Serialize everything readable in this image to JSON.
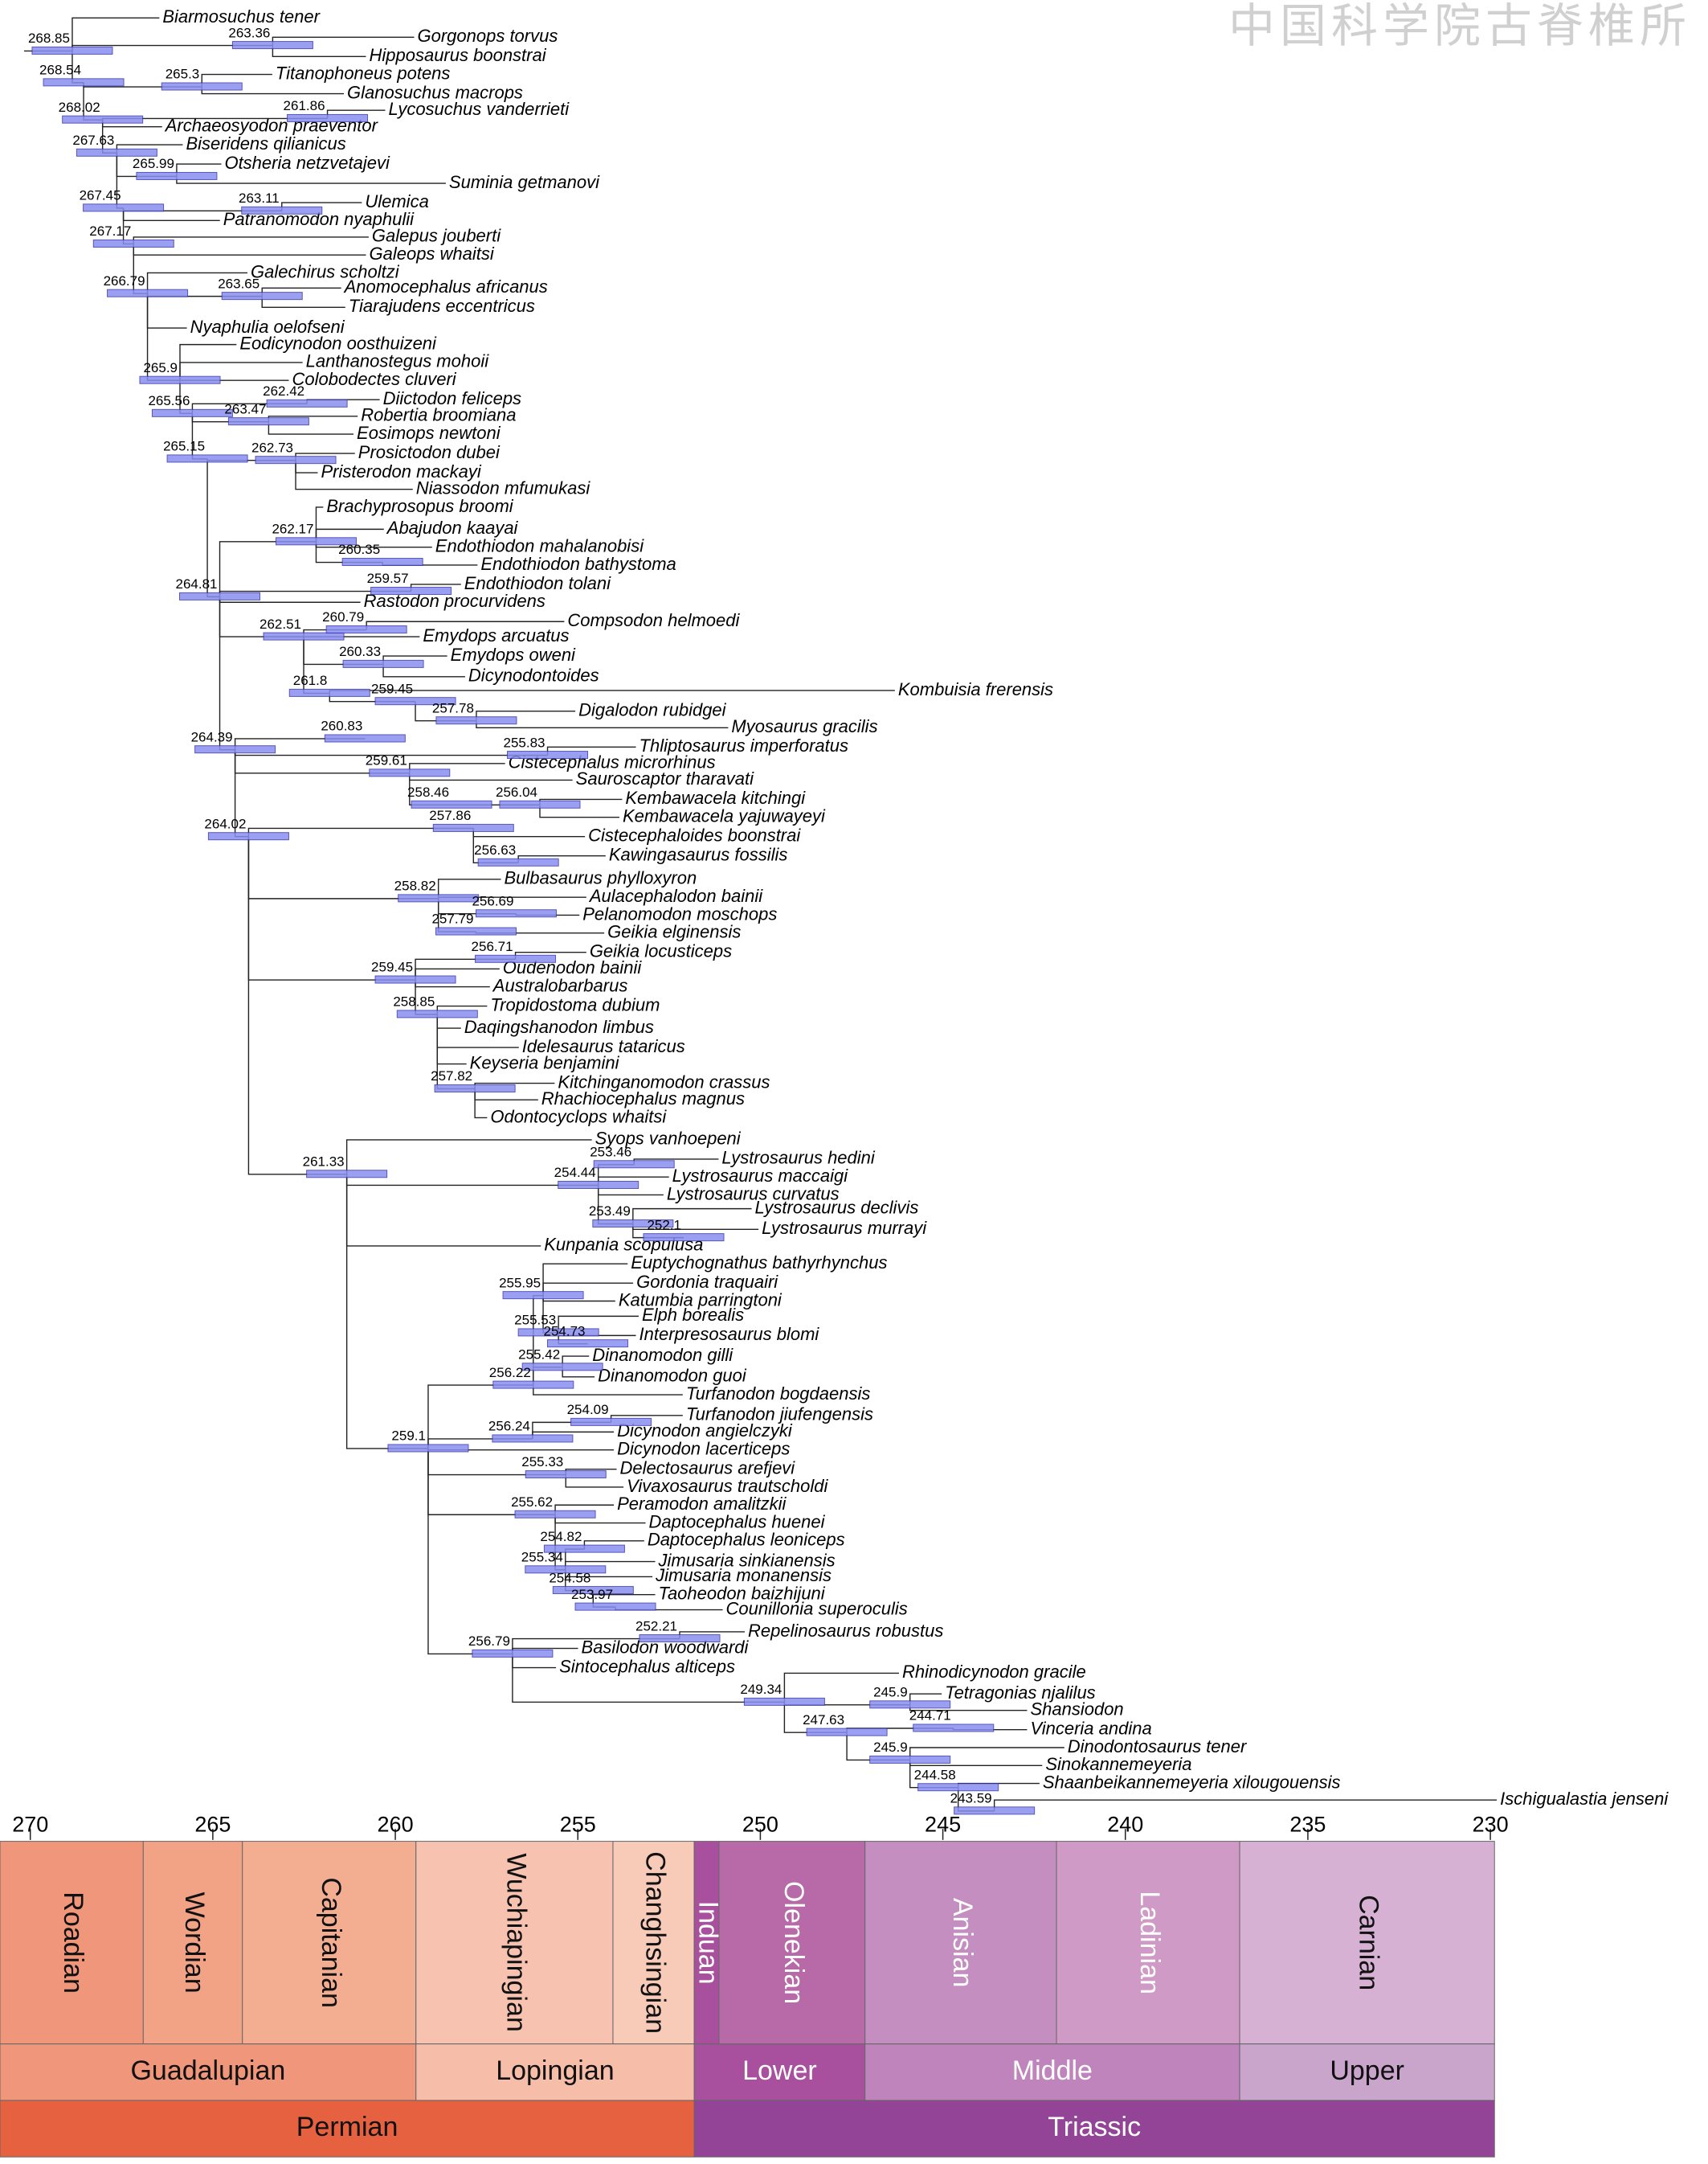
{
  "watermark": "中国科学院古脊椎所",
  "taxa": [
    "Biarmosuchus tener",
    "Gorgonops torvus",
    "Hipposaurus boonstrai",
    "Titanophoneus potens",
    "Glanosuchus macrops",
    "Lycosuchus vanderrieti",
    "Archaeosyodon praeventor",
    "Biseridens qilianicus",
    "Otsheria netzvetajevi",
    "Suminia getmanovi",
    "Ulemica",
    "Patranomodon nyaphulii",
    "Galepus jouberti",
    "Galeops whaitsi",
    "Galechirus scholtzi",
    "Anomocephalus africanus",
    "Tiarajudens eccentricus",
    "Nyaphulia oelofseni",
    "Eodicynodon oosthuizeni",
    "Lanthanostegus mohoii",
    "Colobodectes cluveri",
    "Diictodon feliceps",
    "Robertia broomiana",
    "Eosimops newtoni",
    "Prosictodon dubei",
    "Pristerodon mackayi",
    "Niassodon mfumukasi",
    "Brachyprosopus broomi",
    "Abajudon kaayai",
    "Endothiodon mahalanobisi",
    "Endothiodon bathystoma",
    "Endothiodon tolani",
    "Rastodon procurvidens",
    "Compsodon helmoedi",
    "Emydops arcuatus",
    "Emydops oweni",
    "Dicynodontoides",
    "Kombuisia frerensis",
    "Digalodon rubidgei",
    "Myosaurus gracilis",
    "Thliptosaurus imperforatus",
    "Cistecephalus microrhinus",
    "Sauroscaptor tharavati",
    "Kembawacela kitchingi",
    "Kembawacela yajuwayeyi",
    "Cistecephaloides boonstrai",
    "Kawingasaurus fossilis",
    "Bulbasaurus phylloxyron",
    "Aulacephalodon bainii",
    "Pelanomodon moschops",
    "Geikia elginensis",
    "Geikia locusticeps",
    "Oudenodon bainii",
    "Australobarbarus",
    "Tropidostoma dubium",
    "Daqingshanodon limbus",
    "Idelesaurus tataricus",
    "Keyseria benjamini",
    "Kitchinganomodon crassus",
    "Rhachiocephalus magnus",
    "Odontocyclops whaitsi",
    "Syops vanhoepeni",
    "Lystrosaurus hedini",
    "Lystrosaurus maccaigi",
    "Lystrosaurus curvatus",
    "Lystrosaurus declivis",
    "Lystrosaurus murrayi",
    "Kunpania scopulusa",
    "Euptychognathus bathyrhynchus",
    "Gordonia traquairi",
    "Katumbia parringtoni",
    "Elph borealis",
    "Interpresosaurus blomi",
    "Dinanomodon gilli",
    "Dinanomodon guoi",
    "Turfanodon bogdaensis",
    "Turfanodon jiufengensis",
    "Dicynodon angielczyki",
    "Dicynodon lacerticeps",
    "Delectosaurus arefjevi",
    "Vivaxosaurus trautscholdi",
    "Peramodon amalitzkii",
    "Daptocephalus huenei",
    "Daptocephalus leoniceps",
    "Jimusaria sinkianensis",
    "Jimusaria monanensis",
    "Taoheodon baizhijuni",
    "Counillonia superoculis",
    "Repelinosaurus robustus",
    "Basilodon woodwardi",
    "Sintocephalus alticeps",
    "Rhinodicynodon gracile",
    "Tetragonias njalilus",
    "Shansiodon",
    "Vinceria andina",
    "Dinodontosaurus tener",
    "Sinokannemeyeria",
    "Shaanbeikannemeyeria xilougouensis",
    "Ischigualastia jenseni"
  ],
  "node_ages": [
    268.85,
    263.36,
    268.54,
    265.3,
    261.86,
    268.02,
    267.63,
    265.99,
    267.45,
    263.11,
    267.17,
    266.79,
    263.65,
    265.9,
    265.56,
    263.47,
    262.42,
    265.15,
    262.73,
    264.81,
    262.17,
    260.35,
    259.57,
    262.51,
    260.79,
    260.33,
    261.8,
    259.45,
    260.83,
    257.78,
    255.83,
    264.39,
    259.61,
    258.46,
    256.04,
    257.86,
    256.63,
    264.02,
    258.82,
    256.69,
    257.79,
    256.71,
    259.45,
    258.85,
    257.82,
    261.33,
    253.46,
    254.44,
    253.49,
    252.1,
    255.95,
    255.53,
    254.73,
    255.42,
    256.22,
    254.09,
    259.1,
    256.24,
    255.33,
    255.62,
    254.82,
    255.34,
    254.58,
    253.97,
    252.21,
    256.79,
    249.34,
    245.9,
    247.63,
    244.71,
    245.9,
    244.58,
    243.59
  ],
  "time_axis": {
    "ticks": [
      270,
      265,
      260,
      255,
      250,
      245,
      240,
      235,
      230
    ]
  },
  "stages": [
    {
      "name": "Roadian",
      "color": "#f0967a"
    },
    {
      "name": "Wordian",
      "color": "#f2a285"
    },
    {
      "name": "Capitanian",
      "color": "#f3ae92"
    },
    {
      "name": "Wuchiapingian",
      "color": "#f7c3b0"
    },
    {
      "name": "Changhsingian",
      "color": "#f8cbb9"
    },
    {
      "name": "Induan",
      "color": "#a8509d"
    },
    {
      "name": "Olenekian",
      "color": "#b86aa8"
    },
    {
      "name": "Anisian",
      "color": "#c48ec0"
    },
    {
      "name": "Ladinian",
      "color": "#d09ac6"
    },
    {
      "name": "Carnian",
      "color": "#d6b1d4"
    }
  ],
  "series": [
    {
      "name": "Guadalupian",
      "color": "#f0967a"
    },
    {
      "name": "Lopingian",
      "color": "#f6bda9"
    },
    {
      "name": "Lower",
      "color": "#a8509d"
    },
    {
      "name": "Middle",
      "color": "#be84bb"
    },
    {
      "name": "Upper",
      "color": "#c9a4cb"
    }
  ],
  "periods": [
    {
      "name": "Permian",
      "color": "#e5613f"
    },
    {
      "name": "Triassic",
      "color": "#944497"
    }
  ]
}
